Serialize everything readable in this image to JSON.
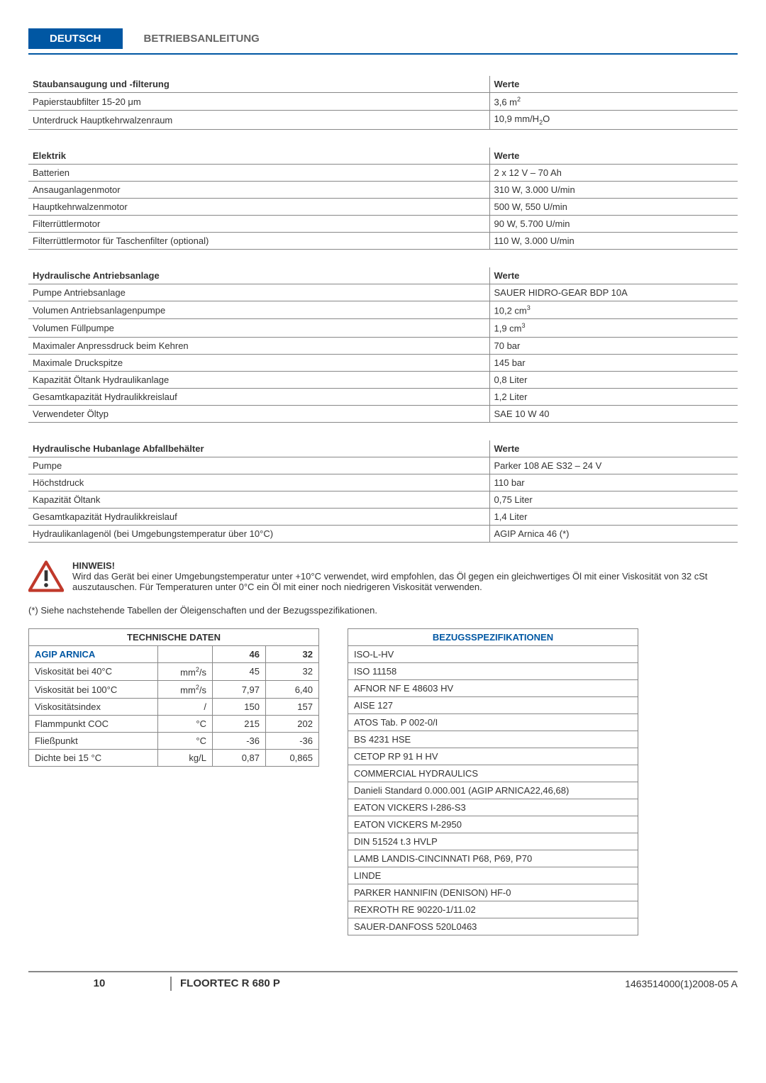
{
  "header": {
    "lang": "DEUTSCH",
    "title": "BETRIEBSANLEITUNG"
  },
  "tables": [
    {
      "head_left": "Staubansaugung und -ﬁlterung",
      "head_right": "Werte",
      "rows": [
        [
          "Papierstaubﬁlter 15-20 μm",
          "3,6 m²"
        ],
        [
          "Unterdruck Hauptkehrwalzenraum",
          "10,9 mm/H₂O"
        ]
      ]
    },
    {
      "head_left": "Elektrik",
      "head_right": "Werte",
      "rows": [
        [
          "Batterien",
          "2 x 12 V – 70 Ah"
        ],
        [
          "Ansauganlagenmotor",
          "310 W, 3.000 U/min"
        ],
        [
          "Hauptkehrwalzenmotor",
          "500 W, 550 U/min"
        ],
        [
          "Filterrüttlermotor",
          "90 W, 5.700 U/min"
        ],
        [
          "Filterrüttlermotor für Taschenﬁlter (optional)",
          "110 W, 3.000 U/min"
        ]
      ]
    },
    {
      "head_left": "Hydraulische Antriebsanlage",
      "head_right": "Werte",
      "rows": [
        [
          "Pumpe Antriebsanlage",
          "SAUER HIDRO-GEAR BDP 10A"
        ],
        [
          "Volumen Antriebsanlagenpumpe",
          "10,2 cm³"
        ],
        [
          "Volumen Füllpumpe",
          "1,9 cm³"
        ],
        [
          "Maximaler Anpressdruck beim Kehren",
          "70 bar"
        ],
        [
          "Maximale Druckspitze",
          "145 bar"
        ],
        [
          "Kapazität Öltank Hydraulikanlage",
          "0,8 Liter"
        ],
        [
          "Gesamtkapazität Hydraulikkreislauf",
          "1,2 Liter"
        ],
        [
          "Verwendeter Öltyp",
          "SAE 10 W 40"
        ]
      ]
    },
    {
      "head_left": "Hydraulische Hubanlage Abfallbehälter",
      "head_right": "Werte",
      "rows": [
        [
          "Pumpe",
          "Parker 108 AE S32 – 24 V"
        ],
        [
          "Höchstdruck",
          "110 bar"
        ],
        [
          "Kapazität Öltank",
          "0,75 Liter"
        ],
        [
          "Gesamtkapazität Hydraulikkreislauf",
          "1,4 Liter"
        ],
        [
          "Hydraulikanlagenöl (bei Umgebungstemperatur über 10°C)",
          "AGIP Arnica 46 (*)"
        ]
      ]
    }
  ],
  "notice": {
    "title": "HINWEIS!",
    "body": "Wird das Gerät bei einer Umgebungstemperatur unter +10°C verwendet, wird empfohlen, das Öl gegen ein gleichwertiges Öl mit einer Viskosität von 32 cSt auszutauschen. Für Temperaturen unter 0°C ein Öl mit einer noch niedrigeren Viskosität verwenden."
  },
  "ref_note": "(*)    Siehe nachstehende Tabellen der Öleigenschaften und der Bezugsspeziﬁkationen.",
  "tech": {
    "title": "TECHNISCHE DATEN",
    "brand": "AGIP ARNICA",
    "cols": [
      "46",
      "32"
    ],
    "rows": [
      [
        "Viskosität bei 40°C",
        "mm²/s",
        "45",
        "32"
      ],
      [
        "Viskosität bei 100°C",
        "mm²/s",
        "7,97",
        "6,40"
      ],
      [
        "Viskositätsindex",
        "/",
        "150",
        "157"
      ],
      [
        "Flammpunkt COC",
        "°C",
        "215",
        "202"
      ],
      [
        "Fließpunkt",
        "°C",
        "-36",
        "-36"
      ],
      [
        "Dichte bei 15 °C",
        "kg/L",
        "0,87",
        "0,865"
      ]
    ]
  },
  "specs": {
    "title": "BEZUGSSPEZIFIKATIONEN",
    "items": [
      "ISO-L-HV",
      "ISO 11158",
      "AFNOR NF E 48603 HV",
      "AISE 127",
      "ATOS Tab. P 002-0/I",
      "BS 4231 HSE",
      "CETOP RP 91 H HV",
      "COMMERCIAL HYDRAULICS",
      "Danieli Standard 0.000.001 (AGIP ARNICA22,46,68)",
      "EATON VICKERS I-286-S3",
      "EATON VICKERS M-2950",
      "DIN 51524 t.3 HVLP",
      "LAMB LANDIS-CINCINNATI P68, P69, P70",
      "LINDE",
      "PARKER HANNIFIN (DENISON) HF-0",
      "REXROTH RE 90220-1/11.02",
      "SAUER-DANFOSS 520L0463"
    ]
  },
  "footer": {
    "page": "10",
    "model": "FLOORTEC R 680 P",
    "doc": "1463514000(1)2008-05 A"
  }
}
